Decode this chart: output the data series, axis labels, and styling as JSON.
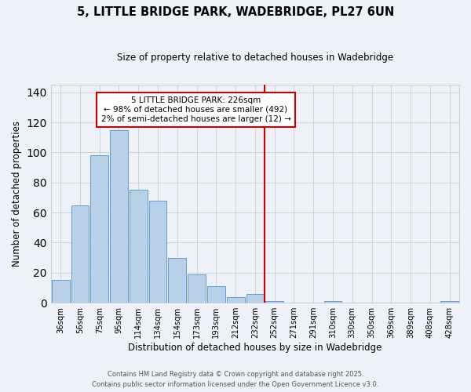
{
  "title": "5, LITTLE BRIDGE PARK, WADEBRIDGE, PL27 6UN",
  "subtitle": "Size of property relative to detached houses in Wadebridge",
  "xlabel": "Distribution of detached houses by size in Wadebridge",
  "ylabel": "Number of detached properties",
  "bar_labels": [
    "36sqm",
    "56sqm",
    "75sqm",
    "95sqm",
    "114sqm",
    "134sqm",
    "154sqm",
    "173sqm",
    "193sqm",
    "212sqm",
    "232sqm",
    "252sqm",
    "271sqm",
    "291sqm",
    "310sqm",
    "330sqm",
    "350sqm",
    "369sqm",
    "389sqm",
    "408sqm",
    "428sqm"
  ],
  "bar_values": [
    15,
    65,
    98,
    115,
    75,
    68,
    30,
    19,
    11,
    4,
    6,
    1,
    0,
    0,
    1,
    0,
    0,
    0,
    0,
    0,
    1
  ],
  "bar_color": "#b8d0e8",
  "bar_edge_color": "#6699cc",
  "vline_x": 10.5,
  "vline_color": "#cc0000",
  "annotation_title": "5 LITTLE BRIDGE PARK: 226sqm",
  "annotation_line1": "← 98% of detached houses are smaller (492)",
  "annotation_line2": "2% of semi-detached houses are larger (12) →",
  "annotation_box_color": "#ffffff",
  "annotation_box_edge": "#cc0000",
  "ylim": [
    0,
    145
  ],
  "yticks": [
    0,
    20,
    40,
    60,
    80,
    100,
    120,
    140
  ],
  "grid_color": "#cccccc",
  "background_color": "#eef2f8",
  "footer1": "Contains HM Land Registry data © Crown copyright and database right 2025.",
  "footer2": "Contains public sector information licensed under the Open Government Licence v3.0."
}
